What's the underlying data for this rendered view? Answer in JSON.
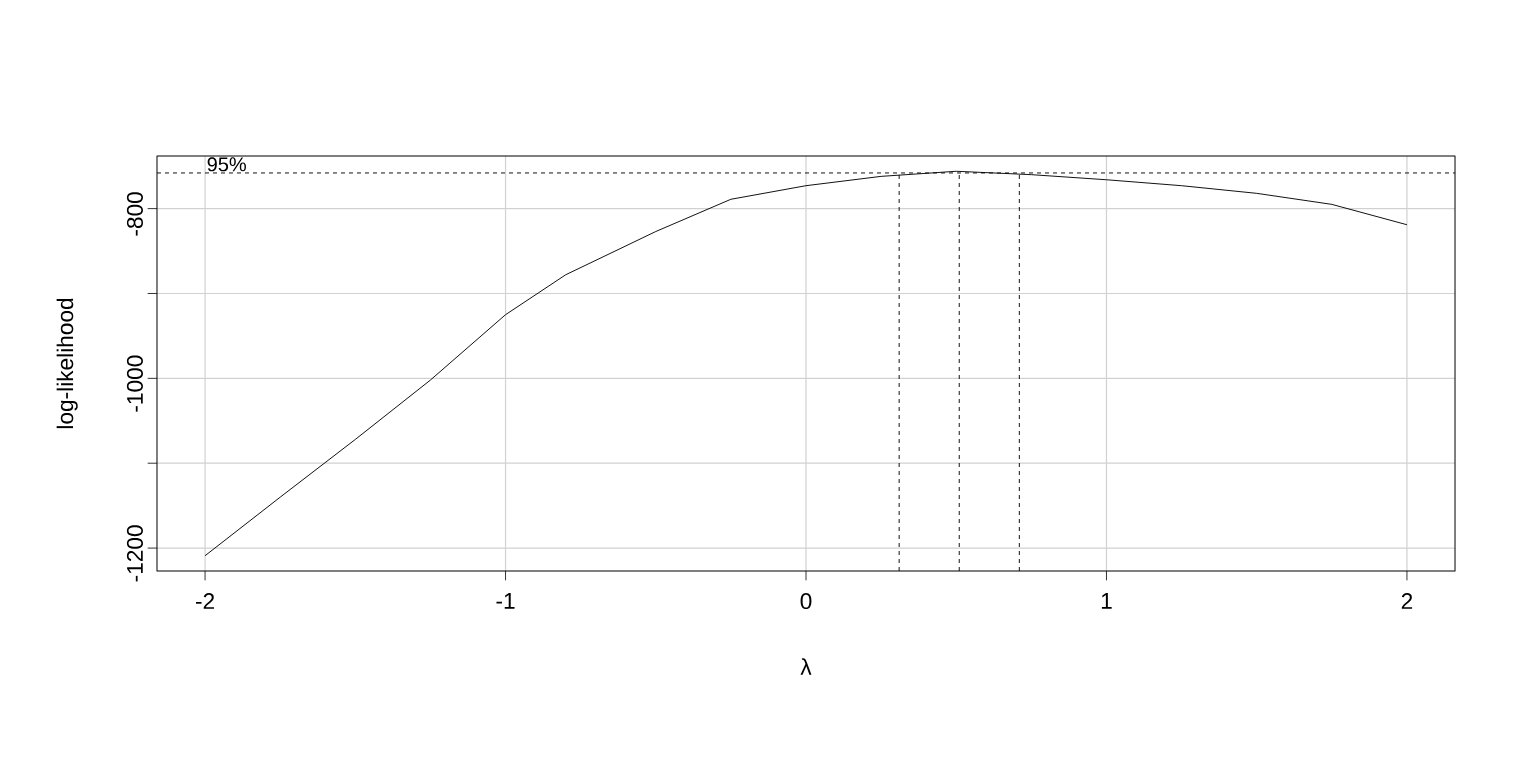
{
  "chart_data": {
    "type": "line",
    "xlabel": "λ",
    "ylabel": "log-likelihood",
    "x": [
      -2,
      -1.75,
      -1.5,
      -1.25,
      -1,
      -0.8,
      -0.5,
      -0.25,
      0,
      0.25,
      0.5,
      0.75,
      1,
      1.25,
      1.5,
      1.75,
      2
    ],
    "series": [
      {
        "color": "#000000",
        "values": [
          -1209,
          -1140,
          -1072,
          -1002,
          -925,
          -878,
          -827,
          -789,
          -773,
          -762,
          -756,
          -760,
          -766,
          -773,
          -782,
          -795,
          -819
        ]
      }
    ],
    "xlim": [
      -2.16,
      2.16
    ],
    "ylim": [
      -1227,
      -738
    ],
    "xticks": [
      -2,
      -1,
      0,
      1,
      2
    ],
    "yticks": [
      -1200,
      {
        "value": -1100,
        "label": null
      },
      -1000,
      {
        "value": -900,
        "label": null
      },
      -800
    ],
    "grid": true,
    "marker": "none",
    "line_style": "solid",
    "annotations": [
      {
        "text": "95%",
        "x": -2,
        "y": -758
      }
    ],
    "ref_lines": [
      {
        "axis": "y",
        "value": -758,
        "line_style": "dashed"
      },
      {
        "axis": "x",
        "value": 0.31,
        "line_style": "dashed"
      },
      {
        "axis": "x",
        "value": 0.51,
        "line_style": "dashed"
      },
      {
        "axis": "x",
        "value": 0.71,
        "line_style": "dashed"
      }
    ]
  }
}
